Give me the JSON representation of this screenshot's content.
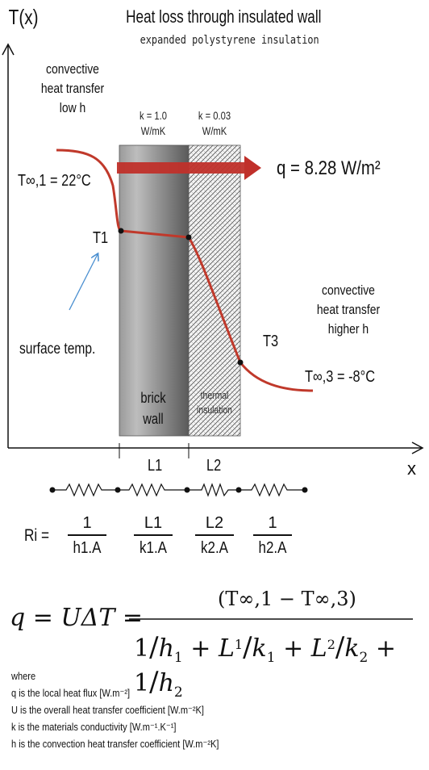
{
  "header": {
    "y_axis_label": "T(x)",
    "title": "Heat loss through insulated wall",
    "subtitle": "expanded polystyrene insulation"
  },
  "x_axis_label": "x",
  "left_side": {
    "convective_line1": "convective",
    "convective_line2": "heat transfer",
    "convective_line3": "low h",
    "t_inf1": "T∞,1 = 22°C",
    "t1_label": "T1",
    "surface_temp": "surface temp."
  },
  "layers": {
    "brick_k": "k = 1.0",
    "brick_units": "W/mK",
    "insulation_k": "k = 0.03",
    "insulation_units": "W/mK",
    "brick_line1": "brick",
    "brick_line2": "wall",
    "insulation_line1": "thermal",
    "insulation_line2": "insulation"
  },
  "heat_flux": "q = 8.28 W/m²",
  "right_side": {
    "convective_line1": "convective",
    "convective_line2": "heat transfer",
    "convective_line3": "higher h",
    "t3_label": "T3",
    "t_inf3": "T∞,3 = -8°C"
  },
  "dimensions": {
    "l1": "L1",
    "l2": "L2"
  },
  "resistances": {
    "ri_label": "Ri =",
    "r1_num": "1",
    "r1_den": "h1.A",
    "r2_num": "L1",
    "r2_den": "k1.A",
    "r3_num": "L2",
    "r3_den": "k2.A",
    "r4_num": "1",
    "r4_den": "h2.A"
  },
  "equation": {
    "lhs": "q = UΔT =",
    "numerator": "(T∞,1 − T∞,3)"
  },
  "where": {
    "heading": "where",
    "line1": "q is the local heat flux [W.m⁻²]",
    "line2": "U is the overall heat transfer coefficient [W.m⁻²K]",
    "line3": "k is the materials conductivity [W.m⁻¹.K⁻¹]",
    "line4": "h is the convection heat transfer coefficient [W.m⁻²K]"
  },
  "colors": {
    "profile": "#c0392b",
    "arrow": "#c0302a",
    "brick_dark": "#6a6a6a",
    "brick_light": "#a8a8a8",
    "pointer": "#4a8fd0"
  }
}
